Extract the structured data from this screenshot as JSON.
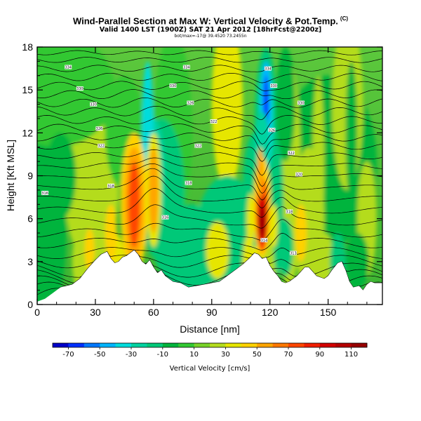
{
  "title": "Wind-Parallel Section at Max W: Vertical Velocity & Pot.Temp.",
  "title_mark": "(C)",
  "subtitle": "Valid 1400 LST (1900Z) SAT 21 Apr 2012 [18hrFcst@2200z]",
  "subtitle2": "bot/max=-17@ 39.4520 73.2455n",
  "chart_data": {
    "type": "heatmap",
    "xlabel": "Distance [nm]",
    "ylabel": "Height [Kft MSL]",
    "xlim": [
      0,
      178
    ],
    "ylim": [
      0,
      18
    ],
    "xticks": [
      "0",
      "30",
      "60",
      "90",
      "120",
      "150"
    ],
    "xtick_values": [
      0,
      30,
      60,
      90,
      120,
      150
    ],
    "yticks": [
      "0",
      "3",
      "6",
      "9",
      "12",
      "15",
      "18"
    ],
    "ytick_values": [
      0,
      3,
      6,
      9,
      12,
      15,
      18
    ],
    "colorbar": {
      "label": "Vertical Velocity [cm/s]",
      "ticks": [
        "-70",
        "-50",
        "-30",
        "-10",
        "10",
        "30",
        "50",
        "70",
        "90",
        "110"
      ],
      "tick_values": [
        -70,
        -50,
        -30,
        -10,
        10,
        30,
        50,
        70,
        90,
        110
      ],
      "range": [
        -80,
        120
      ],
      "colors": [
        "#0000c8",
        "#0030ff",
        "#0078ff",
        "#00b4ff",
        "#00dcdc",
        "#00d2a0",
        "#00c878",
        "#00b43c",
        "#32c832",
        "#78d228",
        "#b4dc1e",
        "#e6e600",
        "#ffd200",
        "#ffa500",
        "#ff7800",
        "#ff4600",
        "#f01e00",
        "#d20000",
        "#b40000",
        "#960000"
      ]
    },
    "terrain_kft": [
      [
        0,
        0.2
      ],
      [
        4,
        0.4
      ],
      [
        8,
        0.8
      ],
      [
        12,
        1.2
      ],
      [
        18,
        1.4
      ],
      [
        22,
        1.8
      ],
      [
        26,
        2.5
      ],
      [
        30,
        3.1
      ],
      [
        33,
        3.5
      ],
      [
        36,
        3.7
      ],
      [
        38,
        3.2
      ],
      [
        40,
        2.9
      ],
      [
        42,
        3.0
      ],
      [
        44,
        3.3
      ],
      [
        46,
        3.4
      ],
      [
        48,
        3.6
      ],
      [
        50,
        3.8
      ],
      [
        52,
        3.5
      ],
      [
        54,
        3.0
      ],
      [
        56,
        2.8
      ],
      [
        58,
        3.1
      ],
      [
        60,
        2.6
      ],
      [
        62,
        2.2
      ],
      [
        64,
        2.4
      ],
      [
        66,
        2.0
      ],
      [
        70,
        1.6
      ],
      [
        74,
        1.5
      ],
      [
        78,
        1.2
      ],
      [
        82,
        1.3
      ],
      [
        86,
        1.4
      ],
      [
        90,
        1.5
      ],
      [
        94,
        1.6
      ],
      [
        98,
        2.0
      ],
      [
        102,
        2.4
      ],
      [
        106,
        2.8
      ],
      [
        110,
        3.3
      ],
      [
        112,
        3.6
      ],
      [
        114,
        3.5
      ],
      [
        116,
        3.2
      ],
      [
        118,
        3.3
      ],
      [
        120,
        2.7
      ],
      [
        122,
        2.3
      ],
      [
        124,
        2.0
      ],
      [
        126,
        1.6
      ],
      [
        128,
        1.5
      ],
      [
        130,
        1.6
      ],
      [
        134,
        2.0
      ],
      [
        138,
        2.6
      ],
      [
        140,
        2.6
      ],
      [
        142,
        2.3
      ],
      [
        144,
        2.0
      ],
      [
        148,
        1.8
      ],
      [
        150,
        2.0
      ],
      [
        152,
        2.4
      ],
      [
        155,
        2.9
      ],
      [
        157,
        3.0
      ],
      [
        159,
        2.4
      ],
      [
        161,
        1.6
      ],
      [
        163,
        1.2
      ],
      [
        166,
        1.3
      ],
      [
        168,
        1.0
      ],
      [
        170,
        1.4
      ],
      [
        172,
        1.6
      ],
      [
        174,
        1.5
      ],
      [
        178,
        1.5
      ]
    ],
    "theta_labels": [
      {
        "x": 4,
        "y": 7.8,
        "text": "316"
      },
      {
        "x": 16,
        "y": 16.6,
        "text": "334"
      },
      {
        "x": 22,
        "y": 15.1,
        "text": "330"
      },
      {
        "x": 29,
        "y": 14.0,
        "text": "330"
      },
      {
        "x": 32,
        "y": 12.3,
        "text": "326"
      },
      {
        "x": 33,
        "y": 11.1,
        "text": "322"
      },
      {
        "x": 38,
        "y": 8.3,
        "text": "318"
      },
      {
        "x": 66,
        "y": 6.1,
        "text": "316"
      },
      {
        "x": 70,
        "y": 15.3,
        "text": "330"
      },
      {
        "x": 77,
        "y": 16.6,
        "text": "334"
      },
      {
        "x": 79,
        "y": 14.1,
        "text": "326"
      },
      {
        "x": 78,
        "y": 8.5,
        "text": "318"
      },
      {
        "x": 83,
        "y": 11.1,
        "text": "322"
      },
      {
        "x": 91,
        "y": 12.8,
        "text": "322"
      },
      {
        "x": 119,
        "y": 16.5,
        "text": "334"
      },
      {
        "x": 122,
        "y": 15.3,
        "text": "330"
      },
      {
        "x": 117,
        "y": 4.5,
        "text": "314"
      },
      {
        "x": 121,
        "y": 12.2,
        "text": "326"
      },
      {
        "x": 131,
        "y": 10.6,
        "text": "322"
      },
      {
        "x": 130,
        "y": 6.5,
        "text": "318"
      },
      {
        "x": 132,
        "y": 3.6,
        "text": "313"
      },
      {
        "x": 135,
        "y": 9.1,
        "text": "320"
      },
      {
        "x": 136,
        "y": 14.1,
        "text": "330"
      }
    ]
  }
}
